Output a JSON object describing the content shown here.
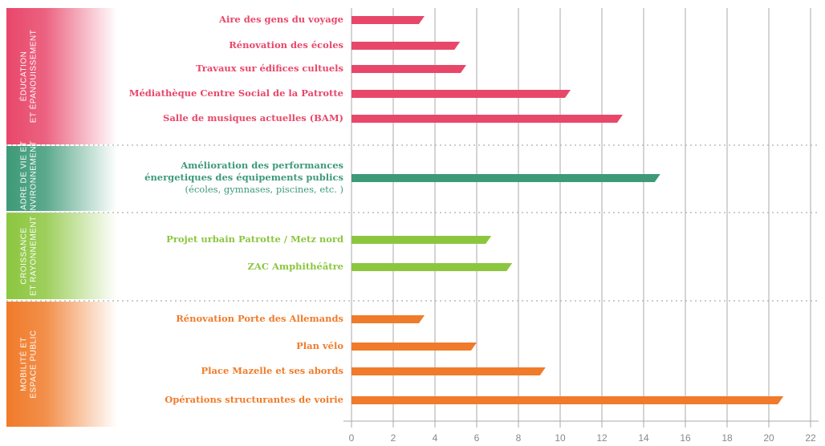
{
  "chart_data": {
    "type": "bar",
    "xlim": [
      0,
      22
    ],
    "xticks": [
      0,
      2,
      4,
      6,
      8,
      10,
      12,
      14,
      16,
      18,
      20,
      22
    ],
    "grid": true,
    "groups": [
      {
        "name": [
          "ÉDUCATION",
          "ET ÉPANOUISSEMENT"
        ],
        "color": "#e8476a",
        "categories": [
          [
            "Aire des gens du voyage"
          ],
          [
            "Rénovation des écoles"
          ],
          [
            "Travaux sur édifices cultuels"
          ],
          [
            "Médiathèque Centre Social de la Patrotte"
          ],
          [
            "Salle de musiques actuelles (BAM)"
          ]
        ],
        "values": [
          3.5,
          5.2,
          5.5,
          10.5,
          13.0
        ]
      },
      {
        "name": [
          "CADRE DE VIE ET",
          "ENVIRONNEMENT"
        ],
        "color": "#3d9a78",
        "categories": [
          [
            "Amélioration des performances",
            "énergetiques des équipements publics",
            "(écoles, gymnases, piscines, etc. )"
          ]
        ],
        "values": [
          14.8
        ]
      },
      {
        "name": [
          "CROISSANCE",
          "ET RAYONNEMENT"
        ],
        "color": "#8cc63f",
        "categories": [
          [
            "Projet urbain  Patrotte / Metz nord"
          ],
          [
            "ZAC Amphithéâtre"
          ]
        ],
        "values": [
          6.7,
          7.7
        ]
      },
      {
        "name": [
          "MOBILITÉ ET",
          "ESPACE PUBLIC"
        ],
        "color": "#f07b2a",
        "categories": [
          [
            "Rénovation Porte des Allemands"
          ],
          [
            "Plan vélo"
          ],
          [
            "Place Mazelle et ses abords"
          ],
          [
            "Opérations structurantes de voirie"
          ]
        ],
        "values": [
          3.5,
          6.0,
          9.3,
          20.7
        ]
      }
    ]
  }
}
